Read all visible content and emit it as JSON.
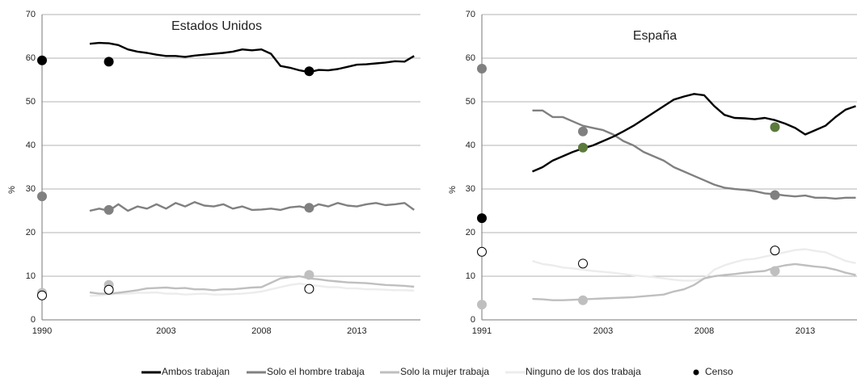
{
  "legend": {
    "series": [
      {
        "name": "Ambos trabajan",
        "color": "#000000"
      },
      {
        "name": "Solo el hombre trabaja",
        "color": "#808080"
      },
      {
        "name": "Solo la mujer trabaja",
        "color": "#bfbfbf"
      },
      {
        "name": "Ninguno de los dos trabaja",
        "color": "#ececec"
      }
    ],
    "census": {
      "name": "Censo",
      "color": "#000000"
    }
  },
  "chart_data": [
    {
      "type": "line",
      "title": "Estados Unidos",
      "y_label": "%",
      "categories": [
        "1990",
        null,
        null,
        null,
        null,
        null,
        null,
        null,
        null,
        null,
        null,
        null,
        null,
        "2003",
        null,
        null,
        null,
        null,
        null,
        null,
        null,
        null,
        null,
        "2008",
        null,
        null,
        null,
        null,
        null,
        null,
        null,
        null,
        null,
        "2013",
        null,
        null,
        null,
        null,
        null,
        null
      ],
      "ylim": [
        0,
        70
      ],
      "yticks": [
        0,
        10,
        20,
        30,
        40,
        50,
        60,
        70
      ],
      "grid": true,
      "series": [
        {
          "color": "#000000",
          "values": [
            null,
            null,
            null,
            null,
            null,
            63.3,
            63.5,
            63.4,
            63.0,
            62.0,
            61.5,
            61.2,
            60.8,
            60.5,
            60.5,
            60.3,
            60.6,
            60.8,
            61.0,
            61.2,
            61.5,
            62.0,
            61.8,
            62.0,
            61.0,
            58.2,
            57.8,
            57.2,
            56.8,
            57.3,
            57.2,
            57.5,
            58.0,
            58.5,
            58.6,
            58.8,
            59.0,
            59.3,
            59.2,
            60.5
          ]
        },
        {
          "color": "#808080",
          "values": [
            null,
            null,
            null,
            null,
            null,
            25.0,
            25.5,
            25.0,
            26.5,
            25.0,
            26.0,
            25.5,
            26.5,
            25.5,
            26.8,
            26.0,
            27.0,
            26.2,
            26.0,
            26.5,
            25.5,
            26.0,
            25.2,
            25.3,
            25.5,
            25.2,
            25.8,
            26.0,
            25.5,
            26.5,
            26.0,
            26.8,
            26.2,
            26.0,
            26.5,
            26.8,
            26.3,
            26.5,
            26.8,
            25.2
          ]
        },
        {
          "color": "#bfbfbf",
          "values": [
            null,
            null,
            null,
            null,
            null,
            6.3,
            6.0,
            6.0,
            6.2,
            6.5,
            6.8,
            7.2,
            7.3,
            7.4,
            7.2,
            7.3,
            7.0,
            7.0,
            6.8,
            7.0,
            7.0,
            7.2,
            7.4,
            7.5,
            8.5,
            9.5,
            9.8,
            10.0,
            9.5,
            9.3,
            9.0,
            8.8,
            8.6,
            8.5,
            8.4,
            8.2,
            8.0,
            7.9,
            7.8,
            7.6
          ]
        },
        {
          "color": "#ececec",
          "values": [
            null,
            null,
            null,
            null,
            null,
            5.5,
            5.6,
            5.8,
            6.0,
            6.0,
            6.2,
            6.2,
            6.3,
            6.0,
            6.0,
            5.8,
            5.9,
            6.0,
            5.8,
            5.8,
            5.9,
            6.0,
            6.2,
            6.5,
            7.0,
            7.5,
            8.0,
            8.3,
            8.0,
            7.8,
            7.5,
            7.5,
            7.2,
            7.2,
            7.0,
            7.0,
            6.9,
            6.8,
            6.8,
            6.7
          ]
        }
      ],
      "census": {
        "x": [
          0,
          7,
          28
        ],
        "values": [
          [
            59.5,
            28.3,
            6.2,
            5.6
          ],
          [
            59.2,
            25.2,
            8.0,
            6.9
          ],
          [
            57.0,
            25.7,
            10.3,
            7.1
          ]
        ],
        "colors": [
          [
            "#000000",
            "#808080",
            "#bfbfbf",
            "none"
          ],
          [
            "#000000",
            "#808080",
            "#bfbfbf",
            "none"
          ],
          [
            "#000000",
            "#808080",
            "#bfbfbf",
            "none"
          ]
        ]
      }
    },
    {
      "type": "line",
      "title": "España",
      "y_label": "%",
      "categories": [
        "1991",
        null,
        null,
        null,
        null,
        null,
        null,
        null,
        null,
        null,
        null,
        null,
        "2003",
        null,
        null,
        null,
        null,
        null,
        null,
        null,
        null,
        null,
        "2008",
        null,
        null,
        null,
        null,
        null,
        null,
        null,
        null,
        null,
        "2013",
        null,
        null,
        null,
        null,
        null
      ],
      "ylim": [
        0,
        70
      ],
      "yticks": [
        0,
        10,
        20,
        30,
        40,
        50,
        60,
        70
      ],
      "grid": true,
      "series": [
        {
          "color": "#000000",
          "values": [
            null,
            null,
            null,
            null,
            null,
            34.0,
            35.0,
            36.5,
            37.5,
            38.5,
            39.3,
            40.0,
            41.0,
            42.0,
            43.2,
            44.5,
            46.0,
            47.5,
            49.0,
            50.5,
            51.2,
            51.8,
            51.5,
            49.0,
            47.0,
            46.3,
            46.2,
            46.0,
            46.3,
            45.8,
            45.0,
            44.0,
            42.5,
            43.5,
            44.5,
            46.5,
            48.2,
            49.0
          ]
        },
        {
          "color": "#808080",
          "values": [
            null,
            null,
            null,
            null,
            null,
            48.0,
            48.0,
            46.5,
            46.5,
            45.5,
            44.5,
            44.0,
            43.5,
            42.5,
            41.0,
            40.0,
            38.5,
            37.5,
            36.5,
            35.0,
            34.0,
            33.0,
            32.0,
            31.0,
            30.3,
            30.0,
            29.8,
            29.5,
            29.0,
            28.8,
            28.5,
            28.3,
            28.5,
            28.0,
            28.0,
            27.8,
            28.0,
            28.0
          ]
        },
        {
          "color": "#bfbfbf",
          "values": [
            null,
            null,
            null,
            null,
            null,
            4.8,
            4.7,
            4.5,
            4.5,
            4.6,
            4.7,
            4.8,
            4.9,
            5.0,
            5.1,
            5.2,
            5.4,
            5.6,
            5.8,
            6.5,
            7.0,
            8.0,
            9.5,
            10.0,
            10.3,
            10.5,
            10.8,
            11.0,
            11.2,
            12.0,
            12.5,
            12.8,
            12.5,
            12.2,
            12.0,
            11.5,
            10.8,
            10.3
          ]
        },
        {
          "color": "#ececec",
          "values": [
            null,
            null,
            null,
            null,
            null,
            13.5,
            12.8,
            12.5,
            12.0,
            11.8,
            11.5,
            11.2,
            11.0,
            10.8,
            10.5,
            10.2,
            10.0,
            9.8,
            9.5,
            9.2,
            9.0,
            9.0,
            9.5,
            11.5,
            12.5,
            13.2,
            13.8,
            14.0,
            14.5,
            15.0,
            15.5,
            16.0,
            16.2,
            15.8,
            15.5,
            14.5,
            13.5,
            13.0
          ]
        }
      ],
      "census": {
        "x": [
          0,
          10,
          29
        ],
        "values": [
          [
            23.3,
            57.6,
            3.5,
            15.6
          ],
          [
            39.5,
            43.2,
            4.5,
            12.9
          ],
          [
            44.2,
            28.6,
            11.2,
            15.9
          ]
        ],
        "colors": [
          [
            "#000000",
            "#808080",
            "#bfbfbf",
            "none"
          ],
          [
            "#5b7a3c",
            "#808080",
            "#bfbfbf",
            "none"
          ],
          [
            "#5b7a3c",
            "#808080",
            "#bfbfbf",
            "none"
          ]
        ]
      }
    }
  ]
}
